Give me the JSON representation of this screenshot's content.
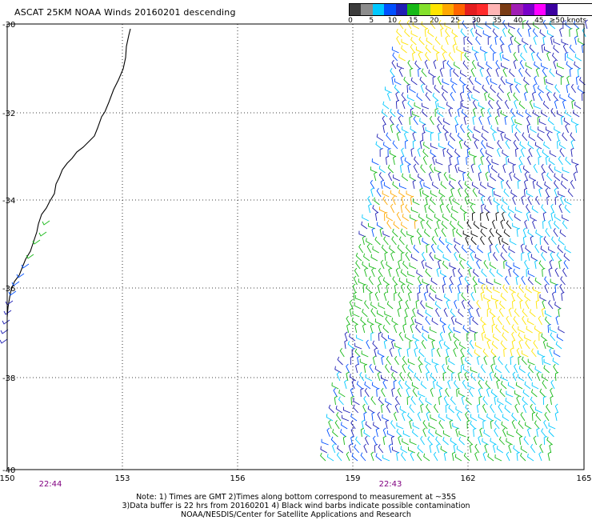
{
  "title": "ASCAT 25KM NOAA Winds 20160201 descending",
  "legend": {
    "colors": [
      "#3c3c3c",
      "#8c8c8c",
      "#00c8ff",
      "#0050ff",
      "#1f1fb4",
      "#16b816",
      "#84e02c",
      "#ffe400",
      "#ffa800",
      "#ff6400",
      "#e41e1e",
      "#ff2a2a",
      "#ffb4b4",
      "#7a3c14",
      "#a01eb4",
      "#7800c8",
      "#ff00ff",
      "#3c00a0"
    ],
    "labels": [
      "0",
      "5",
      "10",
      "15",
      "20",
      "25",
      "30",
      "35",
      "40",
      "45",
      "≥50 knots"
    ]
  },
  "map": {
    "lat_labels": [
      "-30",
      "-32",
      "-34",
      "-36",
      "-38",
      "-40"
    ],
    "lon_labels": [
      "150",
      "153",
      "156",
      "159",
      "162",
      "165"
    ],
    "time_labels": [
      "22:44",
      "22:43"
    ]
  },
  "notes": {
    "line1": "Note: 1) Times are GMT 2)Times along bottom correspond to measurement at ~35S",
    "line2": "3)Data buffer is 22 hrs from 20160201 4) Black wind barbs indicate possible contamination",
    "line3": "NOAA/NESDIS/Center for Satellite Applications and Research"
  }
}
